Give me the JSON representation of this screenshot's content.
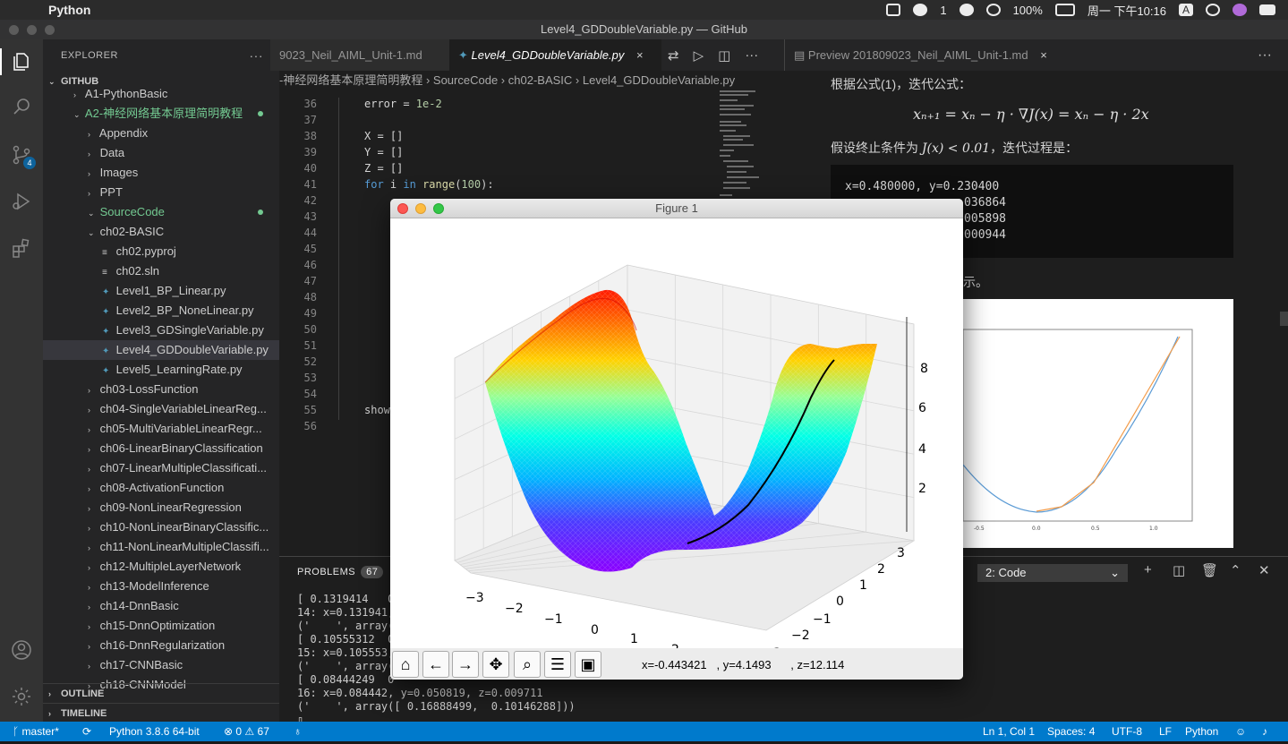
{
  "menubar": {
    "app_name": "Python",
    "wechat_count": "1",
    "battery": "100%",
    "clock": "周一 下午10:16",
    "input_method": "A"
  },
  "window": {
    "title": "Level4_GDDoubleVariable.py — GitHub"
  },
  "activity": {
    "scm_badge": "4"
  },
  "explorer": {
    "header": "EXPLORER",
    "more": "···",
    "root": "GITHUB",
    "tree": [
      {
        "label": "A1-PythonBasic",
        "chev": "›",
        "color": "normal"
      },
      {
        "label": "A2-神经网络基本原理简明教程",
        "chev": "⌄",
        "color": "green",
        "dot": true
      },
      {
        "label": "Appendix",
        "chev": "›"
      },
      {
        "label": "Data",
        "chev": "›"
      },
      {
        "label": "Images",
        "chev": "›"
      },
      {
        "label": "PPT",
        "chev": "›"
      },
      {
        "label": "SourceCode",
        "chev": "⌄",
        "color": "green",
        "dot": true
      },
      {
        "label": "ch02-BASIC",
        "chev": "⌄"
      },
      {
        "label": "ch02.pyproj",
        "file": "text"
      },
      {
        "label": "ch02.sln",
        "file": "text"
      },
      {
        "label": "Level1_BP_Linear.py",
        "file": "py"
      },
      {
        "label": "Level2_BP_NoneLinear.py",
        "file": "py"
      },
      {
        "label": "Level3_GDSingleVariable.py",
        "file": "py"
      },
      {
        "label": "Level4_GDDoubleVariable.py",
        "file": "py",
        "selected": true
      },
      {
        "label": "Level5_LearningRate.py",
        "file": "py"
      },
      {
        "label": "ch03-LossFunction",
        "chev": "›"
      },
      {
        "label": "ch04-SingleVariableLinearReg...",
        "chev": "›"
      },
      {
        "label": "ch05-MultiVariableLinearRegr...",
        "chev": "›"
      },
      {
        "label": "ch06-LinearBinaryClassification",
        "chev": "›"
      },
      {
        "label": "ch07-LinearMultipleClassificati...",
        "chev": "›"
      },
      {
        "label": "ch08-ActivationFunction",
        "chev": "›"
      },
      {
        "label": "ch09-NonLinearRegression",
        "chev": "›"
      },
      {
        "label": "ch10-NonLinearBinaryClassific...",
        "chev": "›"
      },
      {
        "label": "ch11-NonLinearMultipleClassifi...",
        "chev": "›"
      },
      {
        "label": "ch12-MultipleLayerNetwork",
        "chev": "›"
      },
      {
        "label": "ch13-ModelInference",
        "chev": "›"
      },
      {
        "label": "ch14-DnnBasic",
        "chev": "›"
      },
      {
        "label": "ch15-DnnOptimization",
        "chev": "›"
      },
      {
        "label": "ch16-DnnRegularization",
        "chev": "›"
      },
      {
        "label": "ch17-CNNBasic",
        "chev": "›"
      },
      {
        "label": "ch18-CNNModel",
        "chev": "›"
      }
    ],
    "outline": "OUTLINE",
    "timeline": "TIMELINE"
  },
  "editor": {
    "tabs": [
      {
        "label": "9023_Neil_AIML_Unit-1.md"
      },
      {
        "label": "Level4_GDDoubleVariable.py",
        "active": true,
        "close": "×"
      }
    ],
    "breadcrumb": [
      "-神经网络基本原理简明教程",
      "SourceCode",
      "ch02-BASIC",
      "Level4_GDDoubleVariable.py"
    ],
    "code_lines": [
      {
        "n": "36",
        "text": "error = 1e-2"
      },
      {
        "n": "37",
        "text": ""
      },
      {
        "n": "38",
        "text": "X = []"
      },
      {
        "n": "39",
        "text": "Y = []"
      },
      {
        "n": "40",
        "text": "Z = []"
      },
      {
        "n": "41",
        "text": "for i in range(100):"
      },
      {
        "n": "42",
        "text": ""
      },
      {
        "n": "43",
        "text": ""
      },
      {
        "n": "44",
        "text": ""
      },
      {
        "n": "45",
        "text": ""
      },
      {
        "n": "46",
        "text": ""
      },
      {
        "n": "47",
        "text": ""
      },
      {
        "n": "48",
        "text": ""
      },
      {
        "n": "49",
        "text": ""
      },
      {
        "n": "50",
        "text": ""
      },
      {
        "n": "51",
        "text": ""
      },
      {
        "n": "52",
        "text": ""
      },
      {
        "n": "53",
        "text": ""
      },
      {
        "n": "54",
        "text": ""
      },
      {
        "n": "55",
        "text": "show"
      },
      {
        "n": "56",
        "text": ""
      }
    ]
  },
  "preview": {
    "tab": "Preview 201809023_Neil_AIML_Unit-1.md",
    "close": "×",
    "more": "···",
    "line1": "根据公式(1)，迭代公式：",
    "formula": "xₙ₊₁ = xₙ − η · ∇J(x) = xₙ − η · 2x",
    "line2_a": "假设终止条件为 ",
    "line2_math": "J(x) < 0.01",
    "line2_b": "，迭代过程是：",
    "code_block": [
      "x=0.480000, y=0.230400",
      "                .036864",
      "                .005898",
      "                .000944"
    ],
    "fragment": "示。",
    "ticks": [
      "-0.5",
      "0.0",
      "0.5",
      "1.0"
    ]
  },
  "panel": {
    "problems_label": "PROBLEMS",
    "problems_count": "67",
    "terminal_select": "2: Code",
    "terminal_lines": [
      "[ 0.1319414   0",
      "14: x=0.131941,",
      "('    ', array(",
      "[ 0.10555312  0",
      "15: x=0.105553,",
      "('    ', array(",
      "[ 0.08444249  0",
      "16: x=0.084442, y=0.050819, z=0.009711",
      "('    ', array([ 0.16888499,  0.10146288]))",
      "▯"
    ]
  },
  "statusbar": {
    "branch": "master*",
    "interpreter": "Python 3.8.6 64-bit",
    "errors": "0",
    "warnings": "67",
    "cursor": "Ln 1, Col 1",
    "spaces": "Spaces: 4",
    "encoding": "UTF-8",
    "eol": "LF",
    "language": "Python"
  },
  "figure": {
    "title": "Figure 1",
    "coords": "x=-0.443421   , y=4.1493      , z=12.114",
    "x_ticks": [
      "−3",
      "−2",
      "−1",
      "0",
      "1",
      "2",
      "3"
    ],
    "y_ticks": [
      "3",
      "2",
      "1",
      "0",
      "−1",
      "−2",
      "−3"
    ],
    "z_ticks": [
      "8",
      "6",
      "4",
      "2"
    ],
    "toolbar_icons": [
      "home-icon",
      "back-icon",
      "forward-icon",
      "pan-icon",
      "zoom-icon",
      "configure-icon",
      "save-icon"
    ]
  }
}
